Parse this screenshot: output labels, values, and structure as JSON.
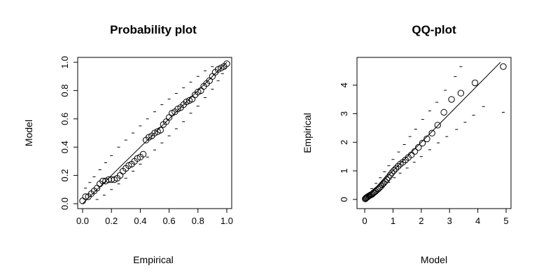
{
  "chart_data": [
    {
      "type": "scatter",
      "title": "Probability plot",
      "xlabel": "Empirical",
      "ylabel": "Model",
      "xlim": [
        0,
        1
      ],
      "ylim": [
        0,
        1
      ],
      "xticks": [
        0.0,
        0.2,
        0.4,
        0.6,
        0.8,
        1.0
      ],
      "yticks": [
        0.0,
        0.2,
        0.4,
        0.6,
        0.8,
        1.0
      ],
      "xtick_labels": [
        "0.0",
        "0.2",
        "0.4",
        "0.6",
        "0.8",
        "1.0"
      ],
      "ytick_labels": [
        "0.0",
        "0.2",
        "0.4",
        "0.6",
        "0.8",
        "1.0"
      ],
      "reference_line": [
        [
          0,
          0
        ],
        [
          1,
          1
        ]
      ],
      "grid": false,
      "points": [
        [
          0.0,
          0.02
        ],
        [
          0.02,
          0.05
        ],
        [
          0.04,
          0.05
        ],
        [
          0.06,
          0.07
        ],
        [
          0.08,
          0.09
        ],
        [
          0.1,
          0.11
        ],
        [
          0.12,
          0.14
        ],
        [
          0.14,
          0.16
        ],
        [
          0.16,
          0.16
        ],
        [
          0.18,
          0.17
        ],
        [
          0.2,
          0.17
        ],
        [
          0.22,
          0.17
        ],
        [
          0.24,
          0.18
        ],
        [
          0.26,
          0.2
        ],
        [
          0.28,
          0.23
        ],
        [
          0.3,
          0.25
        ],
        [
          0.32,
          0.27
        ],
        [
          0.34,
          0.28
        ],
        [
          0.36,
          0.3
        ],
        [
          0.38,
          0.32
        ],
        [
          0.4,
          0.33
        ],
        [
          0.42,
          0.35
        ],
        [
          0.44,
          0.45
        ],
        [
          0.46,
          0.47
        ],
        [
          0.48,
          0.48
        ],
        [
          0.5,
          0.5
        ],
        [
          0.52,
          0.51
        ],
        [
          0.54,
          0.52
        ],
        [
          0.56,
          0.56
        ],
        [
          0.58,
          0.58
        ],
        [
          0.6,
          0.61
        ],
        [
          0.62,
          0.64
        ],
        [
          0.64,
          0.65
        ],
        [
          0.66,
          0.67
        ],
        [
          0.68,
          0.68
        ],
        [
          0.7,
          0.7
        ],
        [
          0.72,
          0.72
        ],
        [
          0.74,
          0.73
        ],
        [
          0.76,
          0.74
        ],
        [
          0.78,
          0.77
        ],
        [
          0.8,
          0.79
        ],
        [
          0.82,
          0.8
        ],
        [
          0.84,
          0.83
        ],
        [
          0.86,
          0.85
        ],
        [
          0.88,
          0.87
        ],
        [
          0.9,
          0.9
        ],
        [
          0.92,
          0.93
        ],
        [
          0.94,
          0.95
        ],
        [
          0.96,
          0.96
        ],
        [
          0.98,
          0.97
        ],
        [
          1.0,
          0.99
        ]
      ],
      "envelope_upper": [
        [
          0.02,
          0.11
        ],
        [
          0.05,
          0.15
        ],
        [
          0.08,
          0.19
        ],
        [
          0.12,
          0.24
        ],
        [
          0.16,
          0.29
        ],
        [
          0.2,
          0.34
        ],
        [
          0.25,
          0.4
        ],
        [
          0.3,
          0.45
        ],
        [
          0.35,
          0.5
        ],
        [
          0.4,
          0.55
        ],
        [
          0.45,
          0.6
        ],
        [
          0.5,
          0.65
        ],
        [
          0.55,
          0.7
        ],
        [
          0.6,
          0.74
        ],
        [
          0.65,
          0.78
        ],
        [
          0.7,
          0.82
        ],
        [
          0.75,
          0.86
        ],
        [
          0.8,
          0.9
        ],
        [
          0.85,
          0.94
        ],
        [
          0.9,
          0.97
        ]
      ],
      "envelope_lower": [
        [
          0.1,
          0.03
        ],
        [
          0.15,
          0.06
        ],
        [
          0.2,
          0.1
        ],
        [
          0.25,
          0.14
        ],
        [
          0.3,
          0.18
        ],
        [
          0.35,
          0.23
        ],
        [
          0.4,
          0.28
        ],
        [
          0.45,
          0.33
        ],
        [
          0.5,
          0.38
        ],
        [
          0.55,
          0.43
        ],
        [
          0.6,
          0.48
        ],
        [
          0.65,
          0.53
        ],
        [
          0.7,
          0.58
        ],
        [
          0.75,
          0.64
        ],
        [
          0.8,
          0.69
        ],
        [
          0.85,
          0.75
        ],
        [
          0.9,
          0.81
        ],
        [
          0.94,
          0.87
        ],
        [
          0.97,
          0.92
        ],
        [
          0.99,
          0.96
        ]
      ]
    },
    {
      "type": "scatter",
      "title": "QQ-plot",
      "xlabel": "Model",
      "ylabel": "Empirical",
      "xlim": [
        -0.1,
        5.0
      ],
      "ylim": [
        -0.15,
        4.8
      ],
      "xticks": [
        0,
        1,
        2,
        3,
        4,
        5
      ],
      "yticks": [
        0,
        1,
        2,
        3,
        4
      ],
      "xtick_labels": [
        "0",
        "1",
        "2",
        "3",
        "4",
        "5"
      ],
      "ytick_labels": [
        "0",
        "1",
        "2",
        "3",
        "4"
      ],
      "reference_line": [
        [
          0,
          0
        ],
        [
          4.8,
          4.8
        ]
      ],
      "grid": false,
      "points": [
        [
          0.02,
          0.02
        ],
        [
          0.04,
          0.04
        ],
        [
          0.06,
          0.06
        ],
        [
          0.09,
          0.08
        ],
        [
          0.12,
          0.1
        ],
        [
          0.15,
          0.12
        ],
        [
          0.18,
          0.14
        ],
        [
          0.22,
          0.16
        ],
        [
          0.26,
          0.18
        ],
        [
          0.3,
          0.22
        ],
        [
          0.34,
          0.25
        ],
        [
          0.38,
          0.28
        ],
        [
          0.42,
          0.32
        ],
        [
          0.47,
          0.36
        ],
        [
          0.52,
          0.41
        ],
        [
          0.57,
          0.46
        ],
        [
          0.62,
          0.52
        ],
        [
          0.67,
          0.57
        ],
        [
          0.72,
          0.63
        ],
        [
          0.78,
          0.7
        ],
        [
          0.84,
          0.77
        ],
        [
          0.9,
          0.85
        ],
        [
          0.96,
          0.93
        ],
        [
          1.03,
          1.01
        ],
        [
          1.1,
          1.08
        ],
        [
          1.18,
          1.16
        ],
        [
          1.26,
          1.24
        ],
        [
          1.35,
          1.3
        ],
        [
          1.44,
          1.38
        ],
        [
          1.54,
          1.47
        ],
        [
          1.65,
          1.56
        ],
        [
          1.77,
          1.68
        ],
        [
          1.9,
          1.82
        ],
        [
          2.04,
          1.97
        ],
        [
          2.2,
          2.12
        ],
        [
          2.38,
          2.32
        ],
        [
          2.58,
          2.6
        ],
        [
          2.8,
          3.05
        ],
        [
          3.07,
          3.5
        ],
        [
          3.4,
          3.72
        ],
        [
          3.9,
          4.08
        ],
        [
          4.9,
          4.65
        ]
      ],
      "envelope_upper": [
        [
          0.1,
          0.18
        ],
        [
          0.25,
          0.38
        ],
        [
          0.4,
          0.56
        ],
        [
          0.55,
          0.76
        ],
        [
          0.7,
          0.97
        ],
        [
          0.85,
          1.18
        ],
        [
          1.0,
          1.4
        ],
        [
          1.2,
          1.66
        ],
        [
          1.4,
          1.92
        ],
        [
          1.6,
          2.2
        ],
        [
          1.8,
          2.46
        ],
        [
          2.05,
          2.8
        ],
        [
          2.3,
          3.1
        ],
        [
          2.55,
          3.4
        ],
        [
          2.85,
          3.82
        ],
        [
          3.2,
          4.3
        ],
        [
          3.4,
          4.65
        ]
      ],
      "envelope_lower": [
        [
          0.25,
          0.12
        ],
        [
          0.45,
          0.28
        ],
        [
          0.65,
          0.44
        ],
        [
          0.85,
          0.6
        ],
        [
          1.05,
          0.76
        ],
        [
          1.25,
          0.92
        ],
        [
          1.5,
          1.1
        ],
        [
          1.75,
          1.3
        ],
        [
          2.0,
          1.5
        ],
        [
          2.3,
          1.74
        ],
        [
          2.6,
          1.98
        ],
        [
          2.9,
          2.2
        ],
        [
          3.25,
          2.45
        ],
        [
          3.55,
          2.7
        ],
        [
          3.85,
          2.95
        ],
        [
          4.2,
          3.25
        ],
        [
          4.9,
          3.05
        ]
      ]
    }
  ]
}
